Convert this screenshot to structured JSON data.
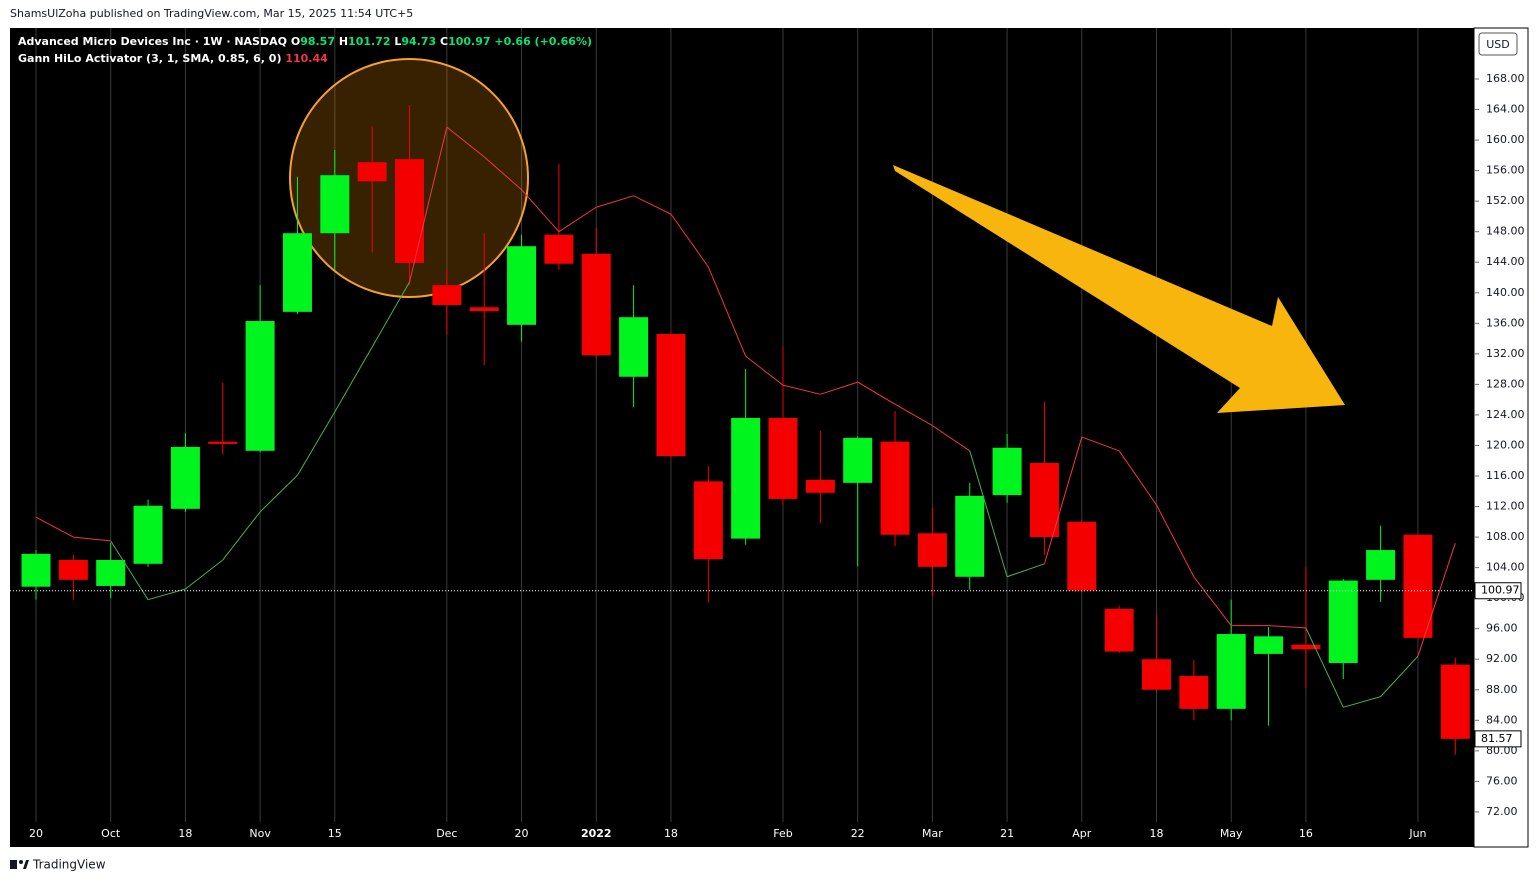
{
  "header": "ShamsUlZoha published on TradingView.com, Mar 15, 2025 11:54 UTC+5",
  "footer": "TradingView",
  "currency": "USD",
  "legend": {
    "symbol": "Advanced Micro Devices Inc · 1W · NASDAQ",
    "open_label": "O",
    "open": 98.57,
    "high_label": "H",
    "high": 101.72,
    "low_label": "L",
    "low": 94.73,
    "close_label": "C",
    "close": 100.97,
    "change": "+0.66 (+0.66%)",
    "indicator": "Gann HiLo Activator (3, 1, SMA, 0.85, 6, 0)",
    "indicator_value": 110.44
  },
  "chart_data": {
    "type": "candlestick",
    "categories": [
      "20",
      null,
      "Oct",
      null,
      "18",
      null,
      "Nov",
      null,
      "15",
      null,
      null,
      "Dec",
      null,
      "20",
      null,
      "2022",
      null,
      "18",
      null,
      null,
      "Feb",
      null,
      "22",
      null,
      "Mar",
      null,
      "21",
      null,
      "Apr",
      null,
      "18",
      null,
      "May",
      null,
      "16",
      null,
      null,
      "Jun",
      null
    ],
    "open": [
      101.5,
      105.0,
      101.6,
      104.5,
      111.7,
      120.5,
      119.3,
      137.5,
      147.8,
      157.1,
      157.5,
      141.0,
      138.1,
      135.8,
      147.6,
      145.1,
      129.0,
      134.6,
      115.3,
      107.8,
      123.6,
      115.5,
      115.1,
      120.5,
      108.5,
      102.8,
      113.5,
      117.7,
      110.0,
      98.6,
      92.0,
      89.8,
      85.5,
      92.7,
      93.9,
      91.5,
      102.4,
      108.3,
      91.3
    ],
    "high": [
      106.3,
      105.7,
      107.2,
      112.9,
      121.6,
      128.2,
      141.0,
      155.2,
      158.7,
      161.8,
      164.6,
      143.0,
      147.8,
      147.6,
      156.9,
      148.5,
      141.0,
      134.8,
      117.3,
      130.0,
      133.0,
      121.9,
      121.2,
      124.5,
      111.8,
      115.1,
      121.5,
      125.7,
      110.2,
      99.0,
      97.9,
      91.9,
      99.8,
      96.2,
      104.1,
      102.5,
      109.5,
      108.5,
      92.2
    ],
    "low": [
      99.8,
      99.8,
      100.0,
      104.1,
      111.3,
      118.8,
      119.1,
      137.2,
      143.0,
      145.3,
      141.0,
      134.5,
      130.5,
      133.6,
      143.0,
      131.5,
      125.0,
      118.4,
      99.4,
      107.0,
      112.2,
      109.8,
      104.2,
      106.8,
      100.2,
      101.1,
      112.5,
      105.7,
      100.8,
      92.8,
      87.8,
      84.0,
      84.0,
      83.3,
      88.2,
      89.4,
      99.5,
      94.6,
      79.5
    ],
    "close": [
      105.8,
      102.4,
      105.0,
      112.1,
      119.8,
      120.2,
      136.3,
      147.8,
      155.4,
      154.6,
      143.9,
      138.4,
      137.6,
      146.1,
      143.8,
      131.8,
      136.8,
      118.6,
      105.1,
      123.6,
      113.0,
      113.8,
      121.0,
      108.3,
      104.1,
      113.4,
      119.7,
      108.0,
      101.0,
      93.0,
      88.0,
      85.5,
      95.3,
      95.0,
      93.3,
      102.3,
      106.3,
      94.8,
      81.57
    ],
    "up_color": "#00f51e",
    "down_color": "#f50000",
    "hilo": {
      "values": [
        110.6,
        108.0,
        107.5,
        99.8,
        101.2,
        105.0,
        111.3,
        116.1,
        124.4,
        132.9,
        141.4,
        161.7,
        157.8,
        153.5,
        148.0,
        151.2,
        152.7,
        150.3,
        143.4,
        131.7,
        127.9,
        126.7,
        128.3,
        125.4,
        122.6,
        119.3,
        102.8,
        104.5,
        121.1,
        119.3,
        112.2,
        102.8,
        96.4,
        96.4,
        96.1,
        85.7,
        87.1,
        92.4,
        107.2
      ],
      "color_above": "#f23645",
      "color_below": "#4caf50"
    },
    "price_line": 100.97,
    "ylim": [
      70.68,
      174.68
    ],
    "yticks": [
      {
        "value": 72,
        "label": "72.00"
      },
      {
        "value": 76,
        "label": "76.00"
      },
      {
        "value": 80,
        "label": "80.00"
      },
      {
        "value": 84,
        "label": "84.00"
      },
      {
        "value": 88,
        "label": "88.00"
      },
      {
        "value": 92,
        "label": "92.00"
      },
      {
        "value": 96,
        "label": "96.00"
      },
      {
        "value": 100,
        "label": "100.00"
      },
      {
        "value": 104,
        "label": "104.00"
      },
      {
        "value": 108,
        "label": "108.00"
      },
      {
        "value": 112,
        "label": "112.00"
      },
      {
        "value": 116,
        "label": "116.00"
      },
      {
        "value": 120,
        "label": "120.00"
      },
      {
        "value": 124,
        "label": "124.00"
      },
      {
        "value": 128,
        "label": "128.00"
      },
      {
        "value": 132,
        "label": "132.00"
      },
      {
        "value": 136,
        "label": "136.00"
      },
      {
        "value": 140,
        "label": "140.00"
      },
      {
        "value": 144,
        "label": "144.00"
      },
      {
        "value": 148,
        "label": "148.00"
      },
      {
        "value": 152,
        "label": "152.00"
      },
      {
        "value": 156,
        "label": "156.00"
      },
      {
        "value": 160,
        "label": "160.00"
      },
      {
        "value": 164,
        "label": "164.00"
      },
      {
        "value": 168,
        "label": "168.00"
      }
    ],
    "grid": true
  }
}
